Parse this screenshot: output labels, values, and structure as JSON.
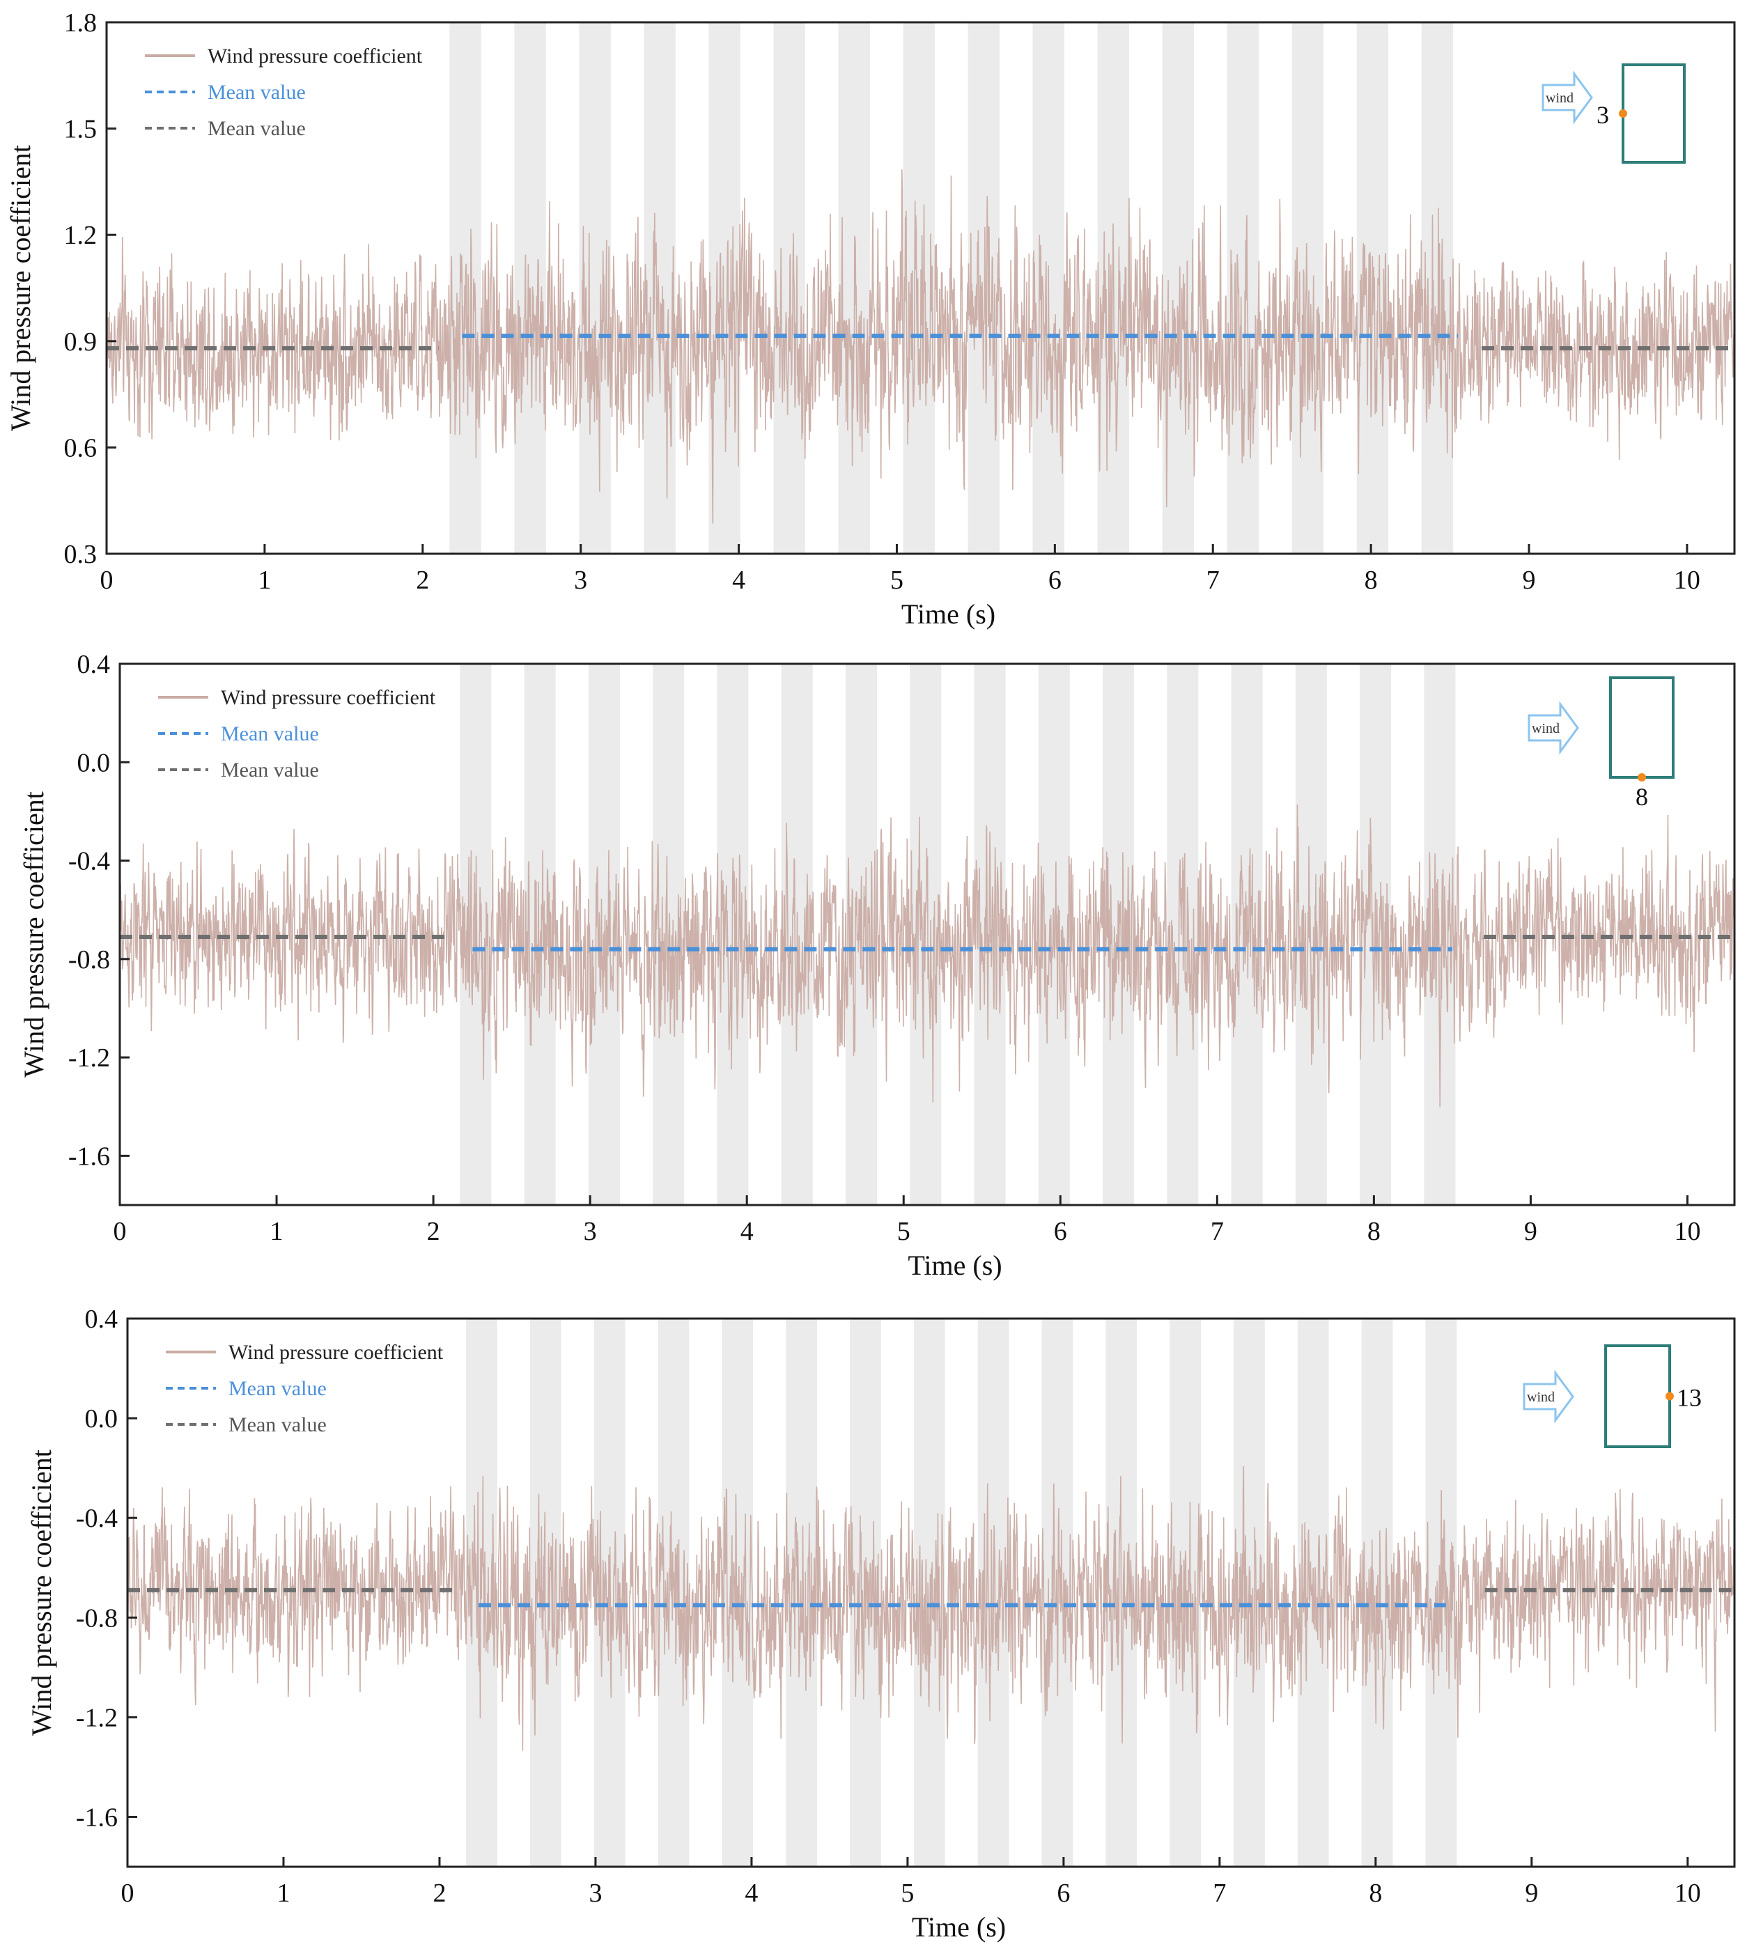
{
  "colors": {
    "signal": "#c9aca4",
    "mean_blue": "#4a90d9",
    "mean_gray": "#6f6f6f",
    "band": "#ebebeb",
    "building": "#2d7d78",
    "tap": "#f08a1c",
    "arrow": "#8cc4ee"
  },
  "chart_data": [
    {
      "type": "line",
      "panel": "top",
      "xlabel": "Time (s)",
      "ylabel": "Wind pressure coefficient",
      "xlim": [
        0,
        10.3
      ],
      "ylim": [
        0.3,
        1.8
      ],
      "xticks": [
        "0",
        "1",
        "2",
        "3",
        "4",
        "5",
        "6",
        "7",
        "8",
        "9",
        "10"
      ],
      "yticks": [
        "0.3",
        "0.6",
        "0.9",
        "1.2",
        "1.5",
        "1.8"
      ],
      "legend": [
        {
          "label": "Wind pressure coefficient",
          "style": "signal"
        },
        {
          "label": "Mean value",
          "style": "mean_blue"
        },
        {
          "label": "Mean value",
          "style": "mean_gray"
        }
      ],
      "signal": {
        "base_mean": 0.88,
        "base_std": 0.11,
        "active_mean": 0.91,
        "active_std": 0.15,
        "active_range": [
          2.2,
          8.55
        ]
      },
      "mean_gray": [
        {
          "x": [
            0.0,
            2.1
          ],
          "y": 0.88
        },
        {
          "x": [
            8.7,
            10.3
          ],
          "y": 0.88
        }
      ],
      "mean_blue": [
        {
          "x": [
            2.25,
            8.55
          ],
          "y": 0.915
        }
      ],
      "bands": [
        [
          2.17,
          2.37
        ],
        [
          2.58,
          2.78
        ],
        [
          2.99,
          3.19
        ],
        [
          3.4,
          3.6
        ],
        [
          3.81,
          4.01
        ],
        [
          4.22,
          4.42
        ],
        [
          4.63,
          4.83
        ],
        [
          5.04,
          5.24
        ],
        [
          5.45,
          5.65
        ],
        [
          5.86,
          6.06
        ],
        [
          6.27,
          6.47
        ],
        [
          6.68,
          6.88
        ],
        [
          7.09,
          7.29
        ],
        [
          7.5,
          7.7
        ],
        [
          7.91,
          8.11
        ],
        [
          8.32,
          8.52
        ]
      ],
      "inset": {
        "wind_label": "wind",
        "tap_label": "3",
        "tap_side": "left"
      }
    },
    {
      "type": "line",
      "panel": "middle",
      "xlabel": "Time (s)",
      "ylabel": "Wind pressure coefficient",
      "xlim": [
        0,
        10.3
      ],
      "ylim": [
        -1.8,
        0.4
      ],
      "xticks": [
        "0",
        "1",
        "2",
        "3",
        "4",
        "5",
        "6",
        "7",
        "8",
        "9",
        "10"
      ],
      "yticks": [
        "0.4",
        "0.0",
        "-0.4",
        "-0.8",
        "-1.2",
        "-1.6"
      ],
      "legend": [
        {
          "label": "Wind pressure coefficient",
          "style": "signal"
        },
        {
          "label": "Mean value",
          "style": "mean_blue"
        },
        {
          "label": "Mean value",
          "style": "mean_gray"
        }
      ],
      "signal": {
        "base_mean": -0.71,
        "base_std": 0.15,
        "active_mean": -0.76,
        "active_std": 0.19,
        "active_range": [
          2.2,
          8.55
        ]
      },
      "mean_gray": [
        {
          "x": [
            0.0,
            2.1
          ],
          "y": -0.71
        },
        {
          "x": [
            8.7,
            10.3
          ],
          "y": -0.71
        }
      ],
      "mean_blue": [
        {
          "x": [
            2.25,
            8.5
          ],
          "y": -0.76
        }
      ],
      "bands": [
        [
          2.17,
          2.37
        ],
        [
          2.58,
          2.78
        ],
        [
          2.99,
          3.19
        ],
        [
          3.4,
          3.6
        ],
        [
          3.81,
          4.01
        ],
        [
          4.22,
          4.42
        ],
        [
          4.63,
          4.83
        ],
        [
          5.04,
          5.24
        ],
        [
          5.45,
          5.65
        ],
        [
          5.86,
          6.06
        ],
        [
          6.27,
          6.47
        ],
        [
          6.68,
          6.88
        ],
        [
          7.09,
          7.29
        ],
        [
          7.5,
          7.7
        ],
        [
          7.91,
          8.11
        ],
        [
          8.32,
          8.52
        ]
      ],
      "inset": {
        "wind_label": "wind",
        "tap_label": "8",
        "tap_side": "bottom"
      }
    },
    {
      "type": "line",
      "panel": "bottom",
      "xlabel": "Time (s)",
      "ylabel": "Wind pressure coefficient",
      "xlim": [
        0,
        10.3
      ],
      "ylim": [
        -1.8,
        0.4
      ],
      "xticks": [
        "0",
        "1",
        "2",
        "3",
        "4",
        "5",
        "6",
        "7",
        "8",
        "9",
        "10"
      ],
      "yticks": [
        "0.4",
        "0.0",
        "-0.4",
        "-0.8",
        "-1.2",
        "-1.6"
      ],
      "legend": [
        {
          "label": "Wind pressure coefficient",
          "style": "signal"
        },
        {
          "label": "Mean value",
          "style": "mean_blue"
        },
        {
          "label": "Mean value",
          "style": "mean_gray"
        }
      ],
      "signal": {
        "base_mean": -0.69,
        "base_std": 0.15,
        "active_mean": -0.75,
        "active_std": 0.19,
        "active_range": [
          2.2,
          8.55
        ]
      },
      "mean_gray": [
        {
          "x": [
            0.0,
            2.1
          ],
          "y": -0.69
        },
        {
          "x": [
            8.7,
            10.3
          ],
          "y": -0.69
        }
      ],
      "mean_blue": [
        {
          "x": [
            2.25,
            8.45
          ],
          "y": -0.75
        }
      ],
      "bands": [
        [
          2.17,
          2.37
        ],
        [
          2.58,
          2.78
        ],
        [
          2.99,
          3.19
        ],
        [
          3.4,
          3.6
        ],
        [
          3.81,
          4.01
        ],
        [
          4.22,
          4.42
        ],
        [
          4.63,
          4.83
        ],
        [
          5.04,
          5.24
        ],
        [
          5.45,
          5.65
        ],
        [
          5.86,
          6.06
        ],
        [
          6.27,
          6.47
        ],
        [
          6.68,
          6.88
        ],
        [
          7.09,
          7.29
        ],
        [
          7.5,
          7.7
        ],
        [
          7.91,
          8.11
        ],
        [
          8.32,
          8.52
        ]
      ],
      "inset": {
        "wind_label": "wind",
        "tap_label": "13",
        "tap_side": "right"
      }
    }
  ]
}
